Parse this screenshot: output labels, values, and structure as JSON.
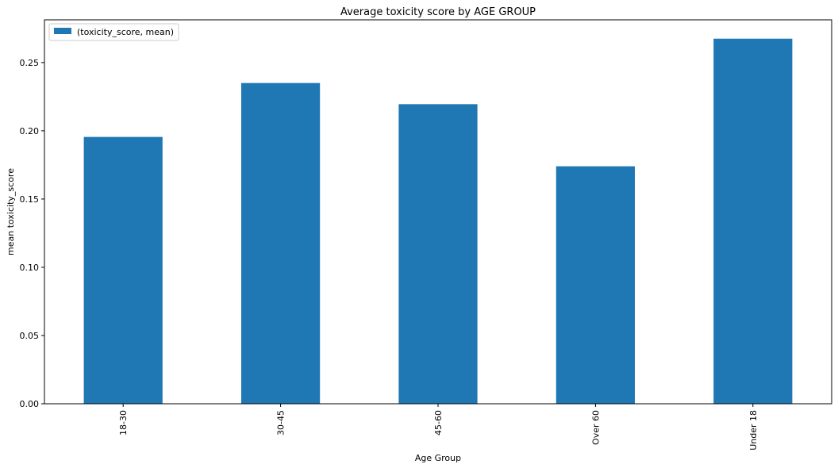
{
  "chart_data": {
    "type": "bar",
    "title": "Average toxicity score by AGE GROUP",
    "xlabel": "Age Group",
    "ylabel": "mean toxicity_score",
    "categories": [
      "18-30",
      "30-45",
      "45-60",
      "Over 60",
      "Under 18"
    ],
    "series": [
      {
        "name": "(toxicity_score, mean)",
        "values": [
          0.1955,
          0.235,
          0.2195,
          0.174,
          0.2675
        ],
        "color": "#1f77b4"
      }
    ],
    "ylim": [
      0,
      0.2813
    ],
    "yticks": [
      0.0,
      0.05,
      0.1,
      0.15,
      0.2,
      0.25
    ],
    "ytick_labels": [
      "0.00",
      "0.05",
      "0.10",
      "0.15",
      "0.20",
      "0.25"
    ],
    "grid": false,
    "legend_position": "top-left"
  }
}
